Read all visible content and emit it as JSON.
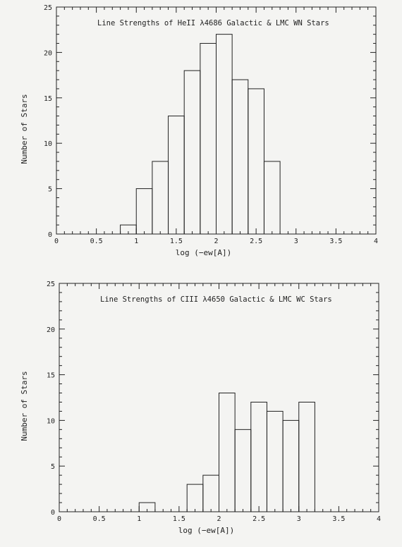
{
  "chart_data": [
    {
      "type": "bar",
      "title": "Line Strengths of HeII λ4686 Galactic & LMC WN Stars",
      "xlabel": "log (−ew[A])",
      "ylabel": "Number of Stars",
      "xlim": [
        0,
        4
      ],
      "ylim": [
        0,
        25
      ],
      "xticks": [
        "0",
        "0.5",
        "1",
        "1.5",
        "2",
        "2.5",
        "3",
        "3.5",
        "4"
      ],
      "yticks": [
        "0",
        "5",
        "10",
        "15",
        "20",
        "25"
      ],
      "bin_width": 0.2,
      "bins_start": [
        0.8,
        1.0,
        1.2,
        1.4,
        1.6,
        1.8,
        2.0,
        2.2,
        2.4,
        2.6
      ],
      "values": [
        1,
        5,
        8,
        13,
        18,
        21,
        22,
        17,
        16,
        8
      ],
      "grid": false
    },
    {
      "type": "bar",
      "title": "Line Strengths of CIII λ4650 Galactic & LMC WC Stars",
      "xlabel": "log (−ew[A])",
      "ylabel": "Number of Stars",
      "xlim": [
        0,
        4
      ],
      "ylim": [
        0,
        25
      ],
      "xticks": [
        "0",
        "0.5",
        "1",
        "1.5",
        "2",
        "2.5",
        "3",
        "3.5",
        "4"
      ],
      "yticks": [
        "0",
        "5",
        "10",
        "15",
        "20",
        "25"
      ],
      "bin_width": 0.2,
      "bins_start": [
        1.0,
        1.2,
        1.4,
        1.6,
        1.8,
        2.0,
        2.2,
        2.4,
        2.6,
        2.8,
        3.0
      ],
      "values": [
        1,
        0,
        0,
        3,
        4,
        13,
        9,
        12,
        11,
        10,
        12
      ],
      "grid": false
    }
  ]
}
